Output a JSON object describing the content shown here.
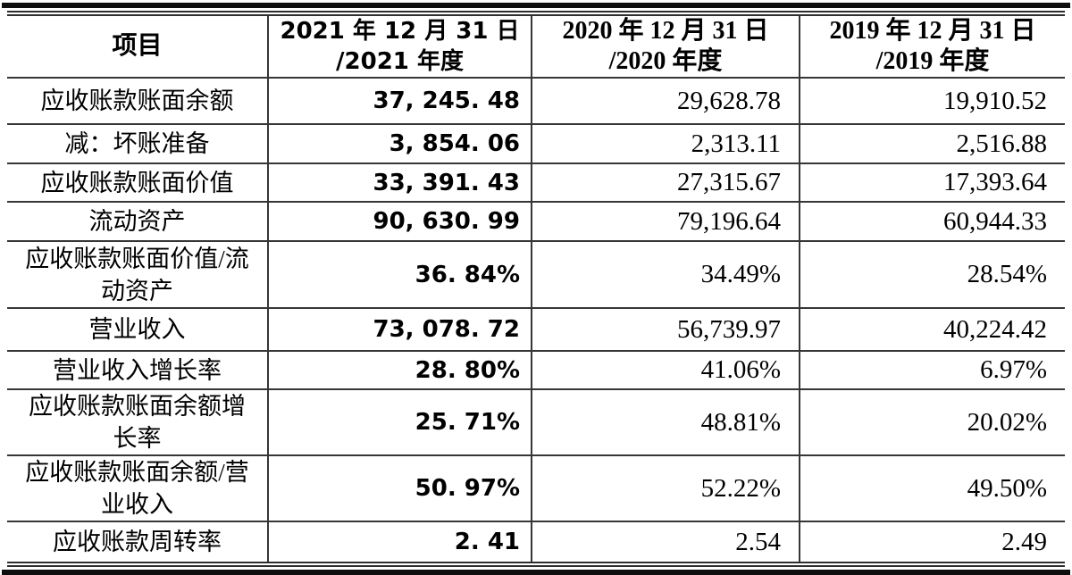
{
  "colors": {
    "background": "#ffffff",
    "text": "#000000",
    "thin_rule": "#363636",
    "thick_bar": "#0e0e0e"
  },
  "table": {
    "header": {
      "item_label": "项目",
      "col_2021_line1": "2021 年 12 月 31 日",
      "col_2021_line2": "/2021 年度",
      "col_2020_line1": "2020 年 12 月 31 日",
      "col_2020_line2": "/2020 年度",
      "col_2019_line1": "2019 年 12 月 31 日",
      "col_2019_line2": "/2019 年度"
    },
    "rows": [
      {
        "label": "应收账款账面余额",
        "v2021": "37, 245. 48",
        "v2020": "29,628.78",
        "v2019": "19,910.52"
      },
      {
        "label": "减：坏账准备",
        "v2021": "3, 854. 06",
        "v2020": "2,313.11",
        "v2019": "2,516.88"
      },
      {
        "label": "应收账款账面价值",
        "v2021": "33, 391. 43",
        "v2020": "27,315.67",
        "v2019": "17,393.64"
      },
      {
        "label": "流动资产",
        "v2021": "90, 630. 99",
        "v2020": "79,196.64",
        "v2019": "60,944.33"
      },
      {
        "label": "应收账款账面价值/流动资产",
        "v2021": "36. 84%",
        "v2020": "34.49%",
        "v2019": "28.54%"
      },
      {
        "label": "营业收入",
        "v2021": "73, 078. 72",
        "v2020": "56,739.97",
        "v2019": "40,224.42"
      },
      {
        "label": "营业收入增长率",
        "v2021": "28. 80%",
        "v2020": "41.06%",
        "v2019": "6.97%"
      },
      {
        "label": "应收账款账面余额增长率",
        "v2021": "25. 71%",
        "v2020": "48.81%",
        "v2019": "20.02%"
      },
      {
        "label": "应收账款账面余额/营业收入",
        "v2021": "50. 97%",
        "v2020": "52.22%",
        "v2019": "49.50%"
      },
      {
        "label": "应收账款周转率",
        "v2021": "2. 41",
        "v2020": "2.54",
        "v2019": "2.49"
      }
    ]
  }
}
